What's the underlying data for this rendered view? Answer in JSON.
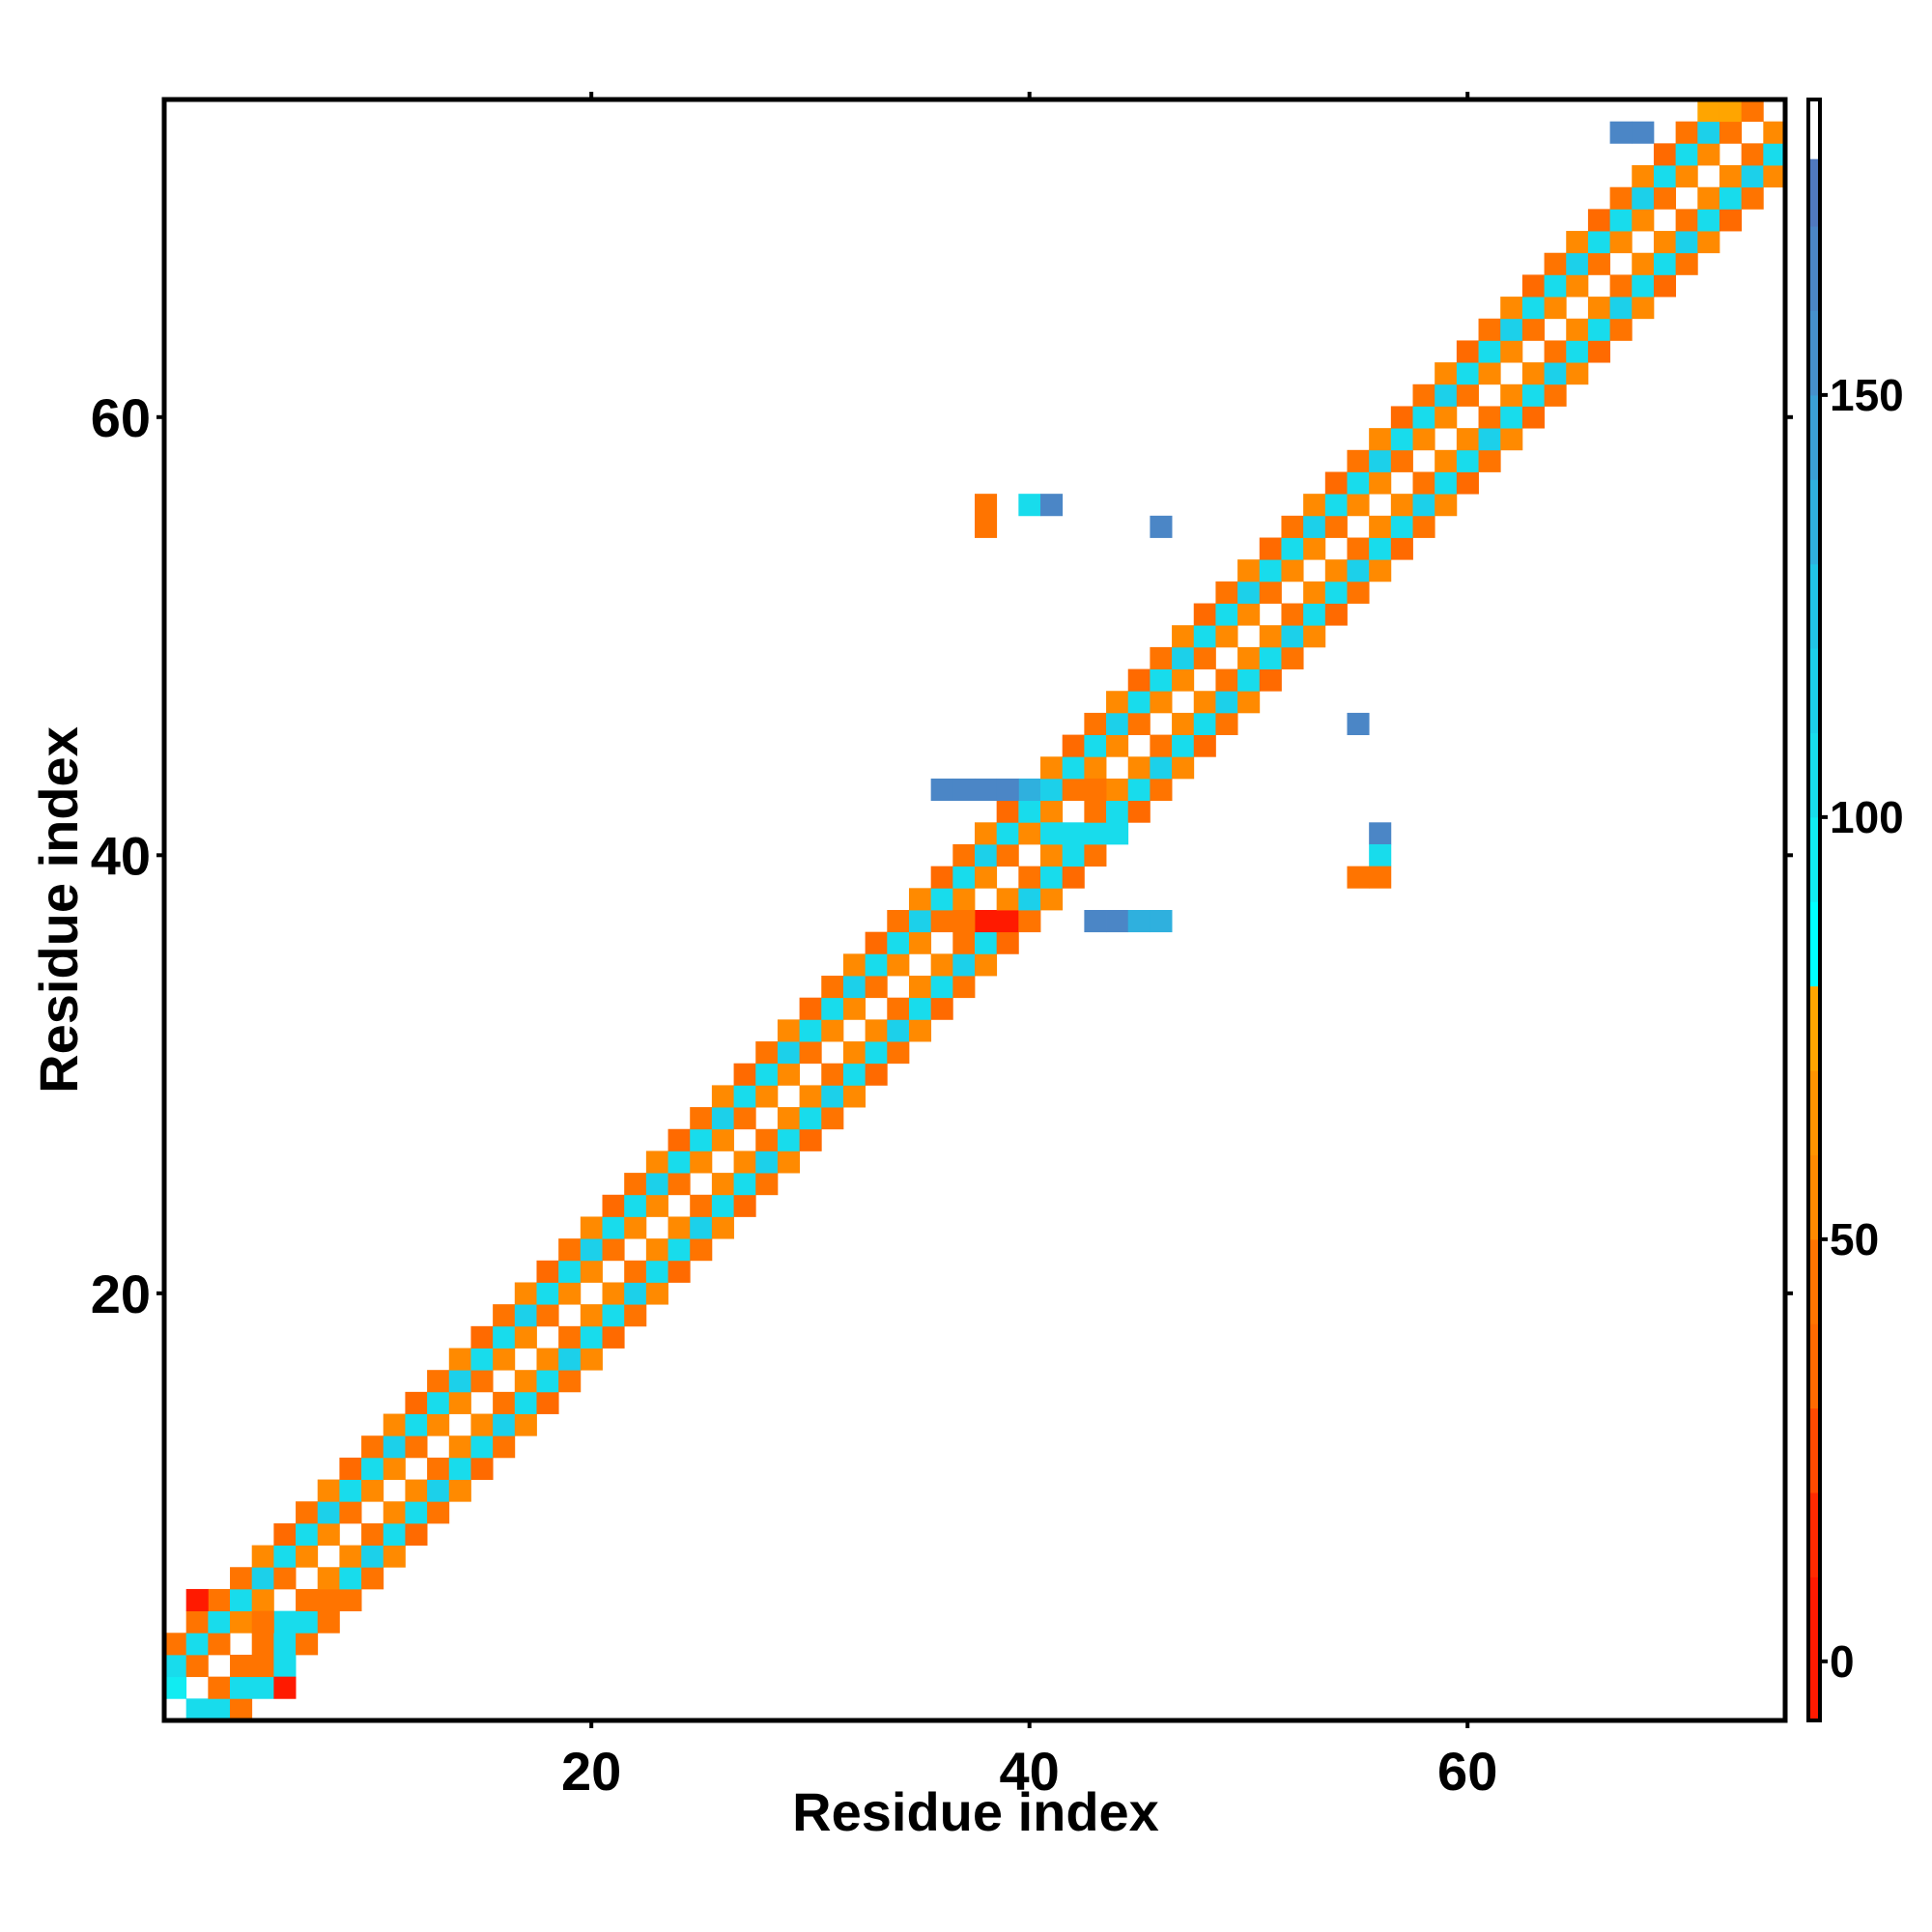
{
  "chart_data": {
    "type": "heatmap",
    "xlabel": "Residue index",
    "ylabel": "Residue index",
    "xlim": [
      1,
      74
    ],
    "ylim": [
      1,
      74
    ],
    "xticks": [
      20,
      40,
      60
    ],
    "yticks": [
      20,
      40,
      60
    ],
    "colorbar": {
      "range": [
        -7,
        185
      ],
      "ticks": [
        0,
        50,
        100,
        150
      ],
      "bins": [
        {
          "from": -7,
          "to": 10,
          "color": "#ff1a00"
        },
        {
          "from": 10,
          "to": 20,
          "color": "#ff2a00"
        },
        {
          "from": 20,
          "to": 30,
          "color": "#ff4a00"
        },
        {
          "from": 30,
          "to": 40,
          "color": "#ff6a00"
        },
        {
          "from": 40,
          "to": 50,
          "color": "#ff7400"
        },
        {
          "from": 50,
          "to": 60,
          "color": "#ff8a00"
        },
        {
          "from": 60,
          "to": 70,
          "color": "#ff9400"
        },
        {
          "from": 70,
          "to": 80,
          "color": "#ffa500"
        },
        {
          "from": 80,
          "to": 90,
          "color": "#00ffff"
        },
        {
          "from": 90,
          "to": 100,
          "color": "#11ecf2"
        },
        {
          "from": 100,
          "to": 110,
          "color": "#18dcec"
        },
        {
          "from": 110,
          "to": 120,
          "color": "#1cd0ea"
        },
        {
          "from": 120,
          "to": 130,
          "color": "#21c4e6"
        },
        {
          "from": 130,
          "to": 140,
          "color": "#2fb0de"
        },
        {
          "from": 140,
          "to": 150,
          "color": "#3ba0d6"
        },
        {
          "from": 150,
          "to": 160,
          "color": "#4690cc"
        },
        {
          "from": 160,
          "to": 170,
          "color": "#4b86c6"
        },
        {
          "from": 170,
          "to": 178,
          "color": "#5079bf"
        },
        {
          "from": 178,
          "to": 185,
          "color": "#ffffff"
        }
      ]
    },
    "diagonal_band": {
      "residue_range": [
        1,
        74
      ],
      "pattern": "alternating residue-pair distances within |i-j| <= 3",
      "values_by_offset": {
        "1": 50,
        "2": 108,
        "3": 45
      }
    },
    "cells": [
      {
        "x": 2,
        "y": 1,
        "v": 108
      },
      {
        "x": 3,
        "y": 1,
        "v": 108
      },
      {
        "x": 4,
        "y": 1,
        "v": 45
      },
      {
        "x": 1,
        "y": 2,
        "v": 90
      },
      {
        "x": 3,
        "y": 2,
        "v": 45
      },
      {
        "x": 4,
        "y": 2,
        "v": 108
      },
      {
        "x": 5,
        "y": 2,
        "v": 108
      },
      {
        "x": 6,
        "y": 2,
        "v": 5
      },
      {
        "x": 1,
        "y": 3,
        "v": 108
      },
      {
        "x": 2,
        "y": 3,
        "v": 45
      },
      {
        "x": 5,
        "y": 3,
        "v": 45
      },
      {
        "x": 6,
        "y": 3,
        "v": 108
      },
      {
        "x": 1,
        "y": 4,
        "v": 45
      },
      {
        "x": 2,
        "y": 4,
        "v": 108
      },
      {
        "x": 3,
        "y": 4,
        "v": 45
      },
      {
        "x": 5,
        "y": 4,
        "v": 45
      },
      {
        "x": 6,
        "y": 4,
        "v": 108
      },
      {
        "x": 7,
        "y": 4,
        "v": 45
      },
      {
        "x": 2,
        "y": 5,
        "v": 45
      },
      {
        "x": 3,
        "y": 5,
        "v": 108
      },
      {
        "x": 5,
        "y": 5,
        "v": 45
      },
      {
        "x": 6,
        "y": 5,
        "v": 108
      },
      {
        "x": 7,
        "y": 5,
        "v": 108
      },
      {
        "x": 8,
        "y": 5,
        "v": 45
      },
      {
        "x": 2,
        "y": 6,
        "v": 5
      },
      {
        "x": 3,
        "y": 6,
        "v": 45
      },
      {
        "x": 7,
        "y": 6,
        "v": 45
      },
      {
        "x": 8,
        "y": 6,
        "v": 45
      },
      {
        "x": 9,
        "y": 6,
        "v": 45
      },
      {
        "x": 37,
        "y": 37,
        "v": 45
      },
      {
        "x": 38,
        "y": 37,
        "v": 5
      },
      {
        "x": 39,
        "y": 37,
        "v": 5
      },
      {
        "x": 43,
        "y": 37,
        "v": 160
      },
      {
        "x": 44,
        "y": 37,
        "v": 160
      },
      {
        "x": 45,
        "y": 37,
        "v": 135
      },
      {
        "x": 46,
        "y": 37,
        "v": 135
      },
      {
        "x": 41,
        "y": 41,
        "v": 108
      },
      {
        "x": 42,
        "y": 41,
        "v": 108
      },
      {
        "x": 43,
        "y": 41,
        "v": 108
      },
      {
        "x": 44,
        "y": 41,
        "v": 108
      },
      {
        "x": 36,
        "y": 43,
        "v": 160
      },
      {
        "x": 37,
        "y": 43,
        "v": 160
      },
      {
        "x": 38,
        "y": 43,
        "v": 160
      },
      {
        "x": 39,
        "y": 43,
        "v": 160
      },
      {
        "x": 40,
        "y": 43,
        "v": 135
      },
      {
        "x": 42,
        "y": 43,
        "v": 45
      },
      {
        "x": 43,
        "y": 43,
        "v": 45
      },
      {
        "x": 55,
        "y": 46,
        "v": 160
      },
      {
        "x": 56,
        "y": 41,
        "v": 160
      },
      {
        "x": 56,
        "y": 40,
        "v": 108
      },
      {
        "x": 55,
        "y": 39,
        "v": 45
      },
      {
        "x": 56,
        "y": 39,
        "v": 45
      },
      {
        "x": 38,
        "y": 56,
        "v": 45
      },
      {
        "x": 38,
        "y": 55,
        "v": 45
      },
      {
        "x": 40,
        "y": 56,
        "v": 108
      },
      {
        "x": 41,
        "y": 56,
        "v": 160
      },
      {
        "x": 46,
        "y": 55,
        "v": 160
      },
      {
        "x": 67,
        "y": 73,
        "v": 160
      },
      {
        "x": 68,
        "y": 73,
        "v": 160
      },
      {
        "x": 71,
        "y": 74,
        "v": 75
      },
      {
        "x": 72,
        "y": 74,
        "v": 75
      },
      {
        "x": 73,
        "y": 74,
        "v": 45
      }
    ]
  }
}
